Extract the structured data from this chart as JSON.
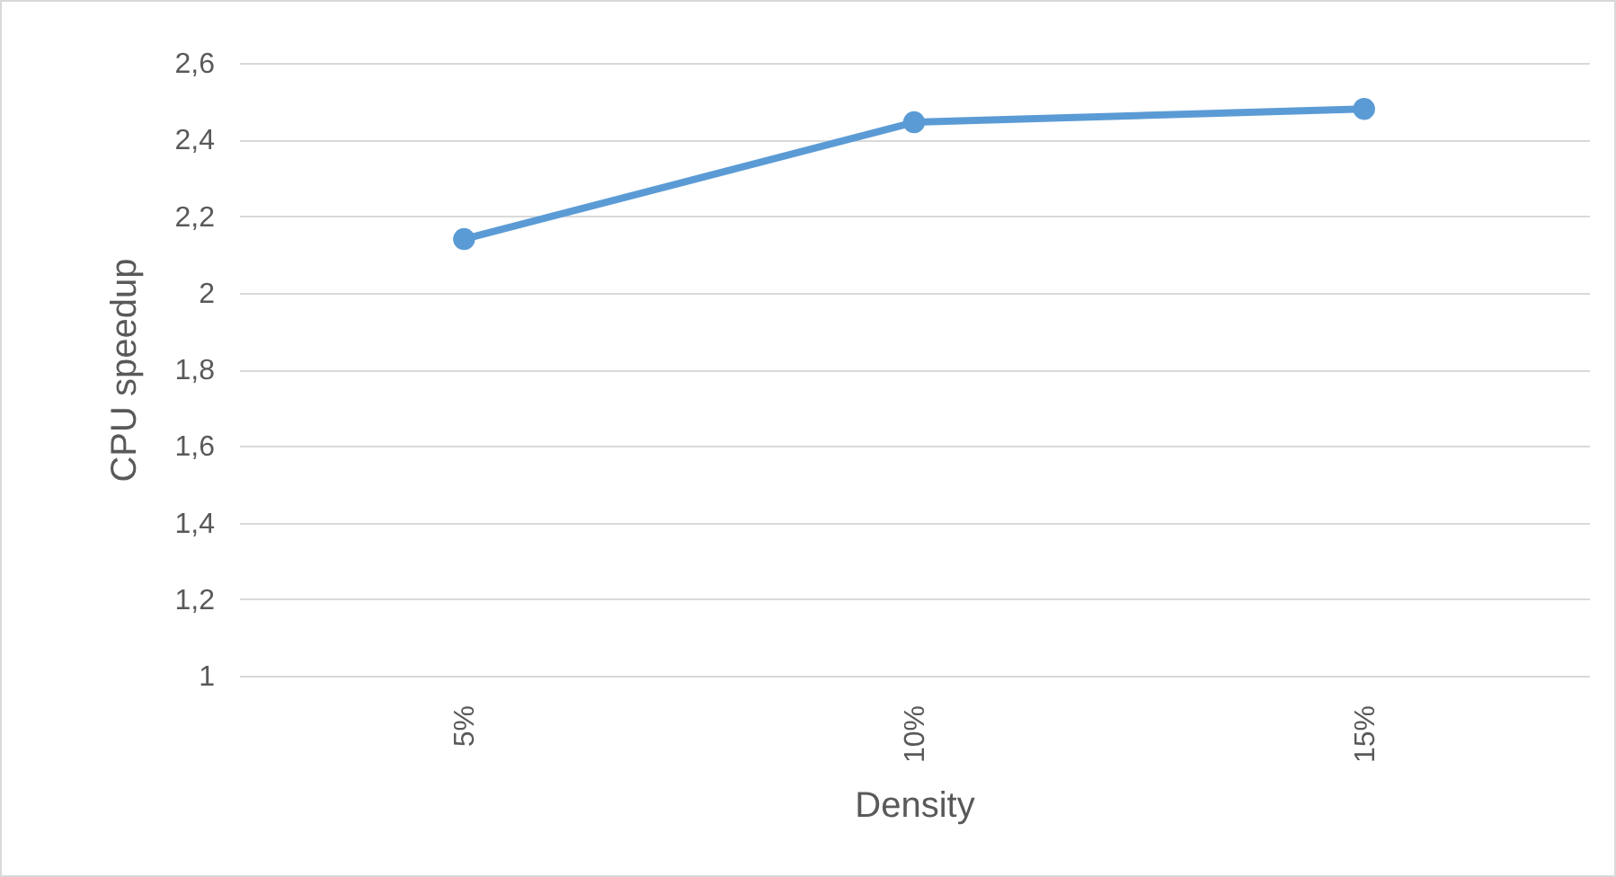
{
  "chart_data": {
    "type": "line",
    "xlabel": "Density",
    "ylabel": "CPU speedup",
    "categories": [
      "5%",
      "10%",
      "15%"
    ],
    "series": [
      {
        "color": "#5b9bd5",
        "values": [
          2.14,
          2.445,
          2.48
        ]
      }
    ],
    "ylim": [
      1,
      2.6
    ],
    "yticks": [
      1,
      {
        "value": 1.2,
        "label": "1,2"
      },
      {
        "value": 1.4,
        "label": "1,4"
      },
      {
        "value": 1.6,
        "label": "1,6"
      },
      {
        "value": 1.8,
        "label": "1,8"
      },
      2,
      {
        "value": 2.2,
        "label": "2,2"
      },
      {
        "value": 2.4,
        "label": "2,4"
      },
      {
        "value": 2.6,
        "label": "2,6"
      }
    ],
    "grid": "y",
    "marker": "circle",
    "line_style": "solid",
    "legend": false
  }
}
